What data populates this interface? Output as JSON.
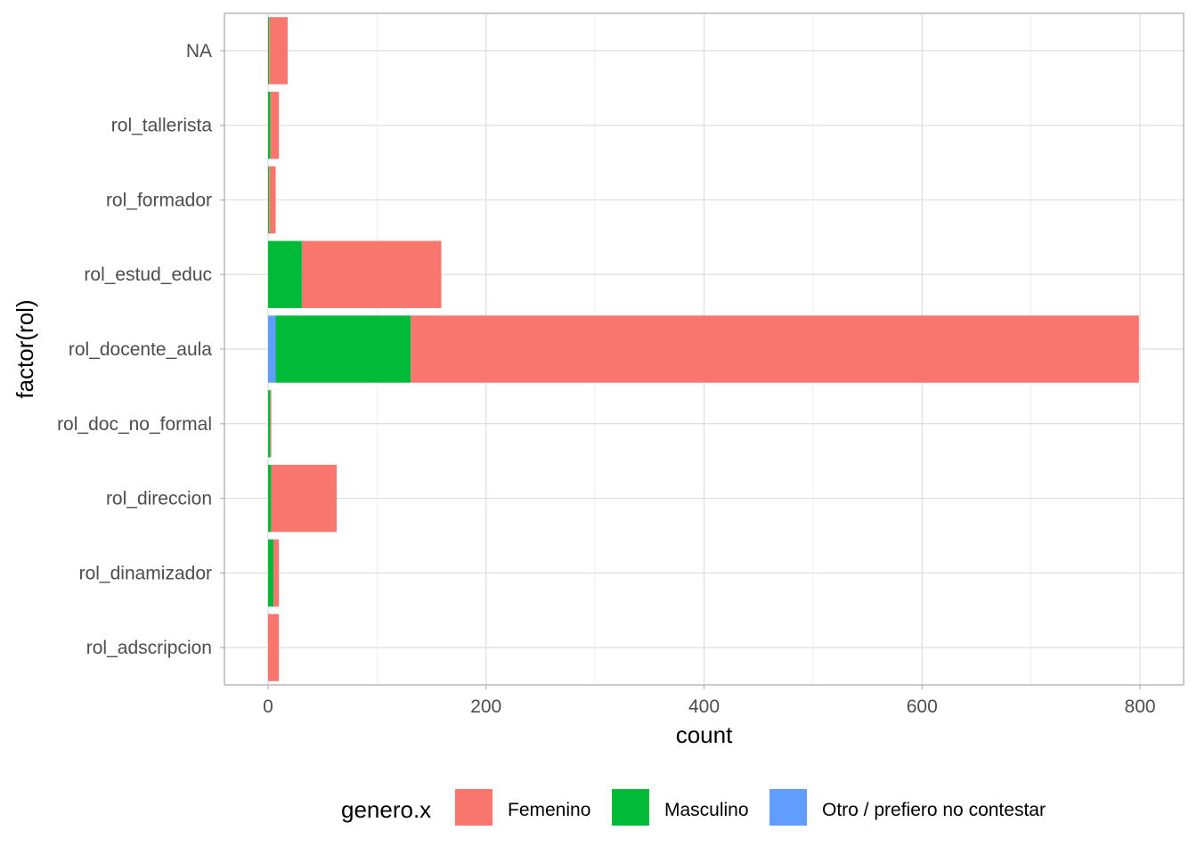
{
  "chart_data": {
    "type": "bar",
    "orientation": "horizontal",
    "stacked": true,
    "title": "",
    "xlabel": "count",
    "ylabel": "factor(rol)",
    "xlim": [
      -40,
      840
    ],
    "x_ticks": [
      0,
      200,
      400,
      600,
      800
    ],
    "grid": true,
    "categories": [
      "rol_adscripcion",
      "rol_dinamizador",
      "rol_direccion",
      "rol_doc_no_formal",
      "rol_docente_aula",
      "rol_estud_educ",
      "rol_formador",
      "rol_tallerista",
      "NA"
    ],
    "series": [
      {
        "name": "Femenino",
        "color": "#F8766D",
        "values": [
          10,
          5,
          60,
          1,
          668,
          128,
          6,
          8,
          17
        ]
      },
      {
        "name": "Masculino",
        "color": "#00BA38",
        "values": [
          0,
          5,
          3,
          2,
          124,
          31,
          1,
          2,
          1
        ]
      },
      {
        "name": "Otro / prefiero no contestar",
        "color": "#619CFF",
        "values": [
          0,
          0,
          0,
          0,
          7,
          0,
          0,
          0,
          0
        ]
      }
    ],
    "stack_order": [
      "Otro / prefiero no contestar",
      "Masculino",
      "Femenino"
    ],
    "legend": {
      "title": "genero.x",
      "position": "bottom"
    }
  }
}
